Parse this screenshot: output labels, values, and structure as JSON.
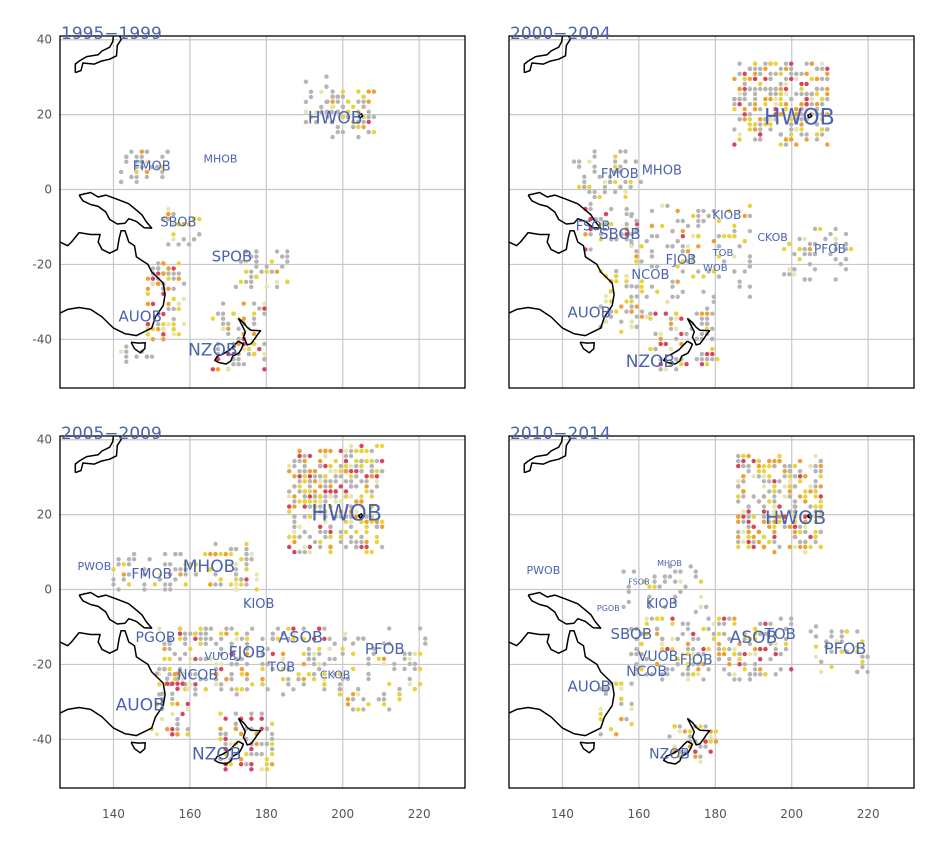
{
  "figure": {
    "x_ticks": [
      140,
      160,
      180,
      200,
      220
    ],
    "y_ticks": [
      40,
      20,
      0,
      -20,
      -40
    ],
    "lon_range": [
      126,
      232
    ],
    "lat_range": [
      -53,
      41
    ],
    "colors": {
      "grey": "#b5b5b5",
      "yellow": "#e8d43a",
      "orange": "#f0a030",
      "red": "#d9445a",
      "pale": "#e8e6b0"
    }
  },
  "panels": [
    {
      "title": "1995−1999",
      "labels": [
        {
          "text": "HWOB",
          "lon": 198,
          "lat": 19,
          "size": 17
        },
        {
          "text": "FMOB",
          "lon": 150,
          "lat": 6,
          "size": 13
        },
        {
          "text": "MHOB",
          "lon": 168,
          "lat": 8,
          "size": 11
        },
        {
          "text": "SBOB",
          "lon": 157,
          "lat": -9,
          "size": 13
        },
        {
          "text": "SPOB",
          "lon": 171,
          "lat": -18,
          "size": 15
        },
        {
          "text": "AUOB",
          "lon": 147,
          "lat": -34,
          "size": 15
        },
        {
          "text": "NZOB",
          "lon": 166,
          "lat": -43,
          "size": 17
        }
      ],
      "clusters": [
        {
          "lon": [
            196,
            208
          ],
          "lat": [
            14,
            26
          ],
          "n": 60,
          "mix": [
            0.6,
            0.25,
            0.1,
            0.05
          ]
        },
        {
          "lon": [
            189,
            197
          ],
          "lat": [
            18,
            30
          ],
          "n": 25,
          "mix": [
            0.85,
            0.1,
            0.05,
            0
          ]
        },
        {
          "lon": [
            142,
            154
          ],
          "lat": [
            2,
            10
          ],
          "n": 40,
          "mix": [
            0.7,
            0.25,
            0.05,
            0
          ]
        },
        {
          "lon": [
            153,
            163
          ],
          "lat": [
            -16,
            -5
          ],
          "n": 25,
          "mix": [
            0.5,
            0.35,
            0.1,
            0.05
          ]
        },
        {
          "lon": [
            149,
            158
          ],
          "lat": [
            -40,
            -20
          ],
          "n": 80,
          "mix": [
            0.3,
            0.3,
            0.2,
            0.2
          ]
        },
        {
          "lon": [
            166,
            180
          ],
          "lat": [
            -48,
            -30
          ],
          "n": 70,
          "mix": [
            0.45,
            0.3,
            0.1,
            0.15
          ]
        },
        {
          "lon": [
            172,
            186
          ],
          "lat": [
            -26,
            -16
          ],
          "n": 40,
          "mix": [
            0.55,
            0.35,
            0.1,
            0
          ]
        },
        {
          "lon": [
            142,
            150
          ],
          "lat": [
            -46,
            -42
          ],
          "n": 10,
          "mix": [
            0.8,
            0.2,
            0,
            0
          ]
        }
      ]
    },
    {
      "title": "2000−2004",
      "labels": [
        {
          "text": "HWOB",
          "lon": 202,
          "lat": 19,
          "size": 22
        },
        {
          "text": "FMOB",
          "lon": 155,
          "lat": 4,
          "size": 13
        },
        {
          "text": "MHOB",
          "lon": 166,
          "lat": 5,
          "size": 13
        },
        {
          "text": "FSOB",
          "lon": 148,
          "lat": -10,
          "size": 13
        },
        {
          "text": "SBOB",
          "lon": 155,
          "lat": -12,
          "size": 15
        },
        {
          "text": "KIOB",
          "lon": 183,
          "lat": -7,
          "size": 12
        },
        {
          "text": "CKOB",
          "lon": 195,
          "lat": -13,
          "size": 11
        },
        {
          "text": "PFOB",
          "lon": 210,
          "lat": -16,
          "size": 12
        },
        {
          "text": "NCOB",
          "lon": 163,
          "lat": -23,
          "size": 13
        },
        {
          "text": "FJOB",
          "lon": 171,
          "lat": -19,
          "size": 13
        },
        {
          "text": "TOB",
          "lon": 182,
          "lat": -17,
          "size": 10
        },
        {
          "text": "WOB",
          "lon": 180,
          "lat": -21,
          "size": 10
        },
        {
          "text": "AUOB",
          "lon": 147,
          "lat": -33,
          "size": 15
        },
        {
          "text": "NZOB",
          "lon": 163,
          "lat": -46,
          "size": 17
        }
      ],
      "clusters": [
        {
          "lon": [
            185,
            210
          ],
          "lat": [
            12,
            34
          ],
          "n": 260,
          "mix": [
            0.45,
            0.3,
            0.15,
            0.1
          ]
        },
        {
          "lon": [
            143,
            160
          ],
          "lat": [
            -2,
            10
          ],
          "n": 50,
          "mix": [
            0.7,
            0.25,
            0.05,
            0
          ]
        },
        {
          "lon": [
            146,
            160
          ],
          "lat": [
            -16,
            -4
          ],
          "n": 40,
          "mix": [
            0.55,
            0.3,
            0.05,
            0.1
          ]
        },
        {
          "lon": [
            158,
            190
          ],
          "lat": [
            -30,
            -4
          ],
          "n": 120,
          "mix": [
            0.6,
            0.3,
            0.08,
            0.02
          ]
        },
        {
          "lon": [
            150,
            162
          ],
          "lat": [
            -38,
            -22
          ],
          "n": 50,
          "mix": [
            0.4,
            0.35,
            0.15,
            0.1
          ]
        },
        {
          "lon": [
            163,
            180
          ],
          "lat": [
            -48,
            -32
          ],
          "n": 80,
          "mix": [
            0.45,
            0.3,
            0.1,
            0.15
          ]
        },
        {
          "lon": [
            198,
            215
          ],
          "lat": [
            -24,
            -10
          ],
          "n": 50,
          "mix": [
            0.75,
            0.2,
            0.05,
            0
          ]
        }
      ]
    },
    {
      "title": "2005−2009",
      "labels": [
        {
          "text": "HWOB",
          "lon": 201,
          "lat": 20,
          "size": 22
        },
        {
          "text": "PWOB",
          "lon": 135,
          "lat": 6,
          "size": 11
        },
        {
          "text": "FMOB",
          "lon": 150,
          "lat": 4,
          "size": 14
        },
        {
          "text": "MHOB",
          "lon": 165,
          "lat": 6,
          "size": 17
        },
        {
          "text": "KIOB",
          "lon": 178,
          "lat": -4,
          "size": 13
        },
        {
          "text": "PGOB",
          "lon": 151,
          "lat": -13,
          "size": 14
        },
        {
          "text": "ASOB",
          "lon": 189,
          "lat": -13,
          "size": 16
        },
        {
          "text": "PFOB",
          "lon": 211,
          "lat": -16,
          "size": 15
        },
        {
          "text": "VUOB",
          "lon": 168,
          "lat": -18,
          "size": 11
        },
        {
          "text": "FJOB",
          "lon": 175,
          "lat": -17,
          "size": 16
        },
        {
          "text": "TOB",
          "lon": 184,
          "lat": -21,
          "size": 13
        },
        {
          "text": "NCOB",
          "lon": 162,
          "lat": -23,
          "size": 14
        },
        {
          "text": "CKOB",
          "lon": 198,
          "lat": -23,
          "size": 11
        },
        {
          "text": "AUOB",
          "lon": 147,
          "lat": -31,
          "size": 17
        },
        {
          "text": "NZOB",
          "lon": 167,
          "lat": -44,
          "size": 17
        }
      ],
      "clusters": [
        {
          "lon": [
            186,
            210
          ],
          "lat": [
            10,
            38
          ],
          "n": 300,
          "mix": [
            0.4,
            0.3,
            0.15,
            0.15
          ]
        },
        {
          "lon": [
            140,
            162
          ],
          "lat": [
            0,
            10
          ],
          "n": 50,
          "mix": [
            0.8,
            0.15,
            0.05,
            0
          ]
        },
        {
          "lon": [
            164,
            180
          ],
          "lat": [
            0,
            12
          ],
          "n": 50,
          "mix": [
            0.5,
            0.4,
            0.08,
            0.02
          ]
        },
        {
          "lon": [
            152,
            200
          ],
          "lat": [
            -28,
            -10
          ],
          "n": 220,
          "mix": [
            0.55,
            0.3,
            0.08,
            0.07
          ]
        },
        {
          "lon": [
            150,
            160
          ],
          "lat": [
            -40,
            -22
          ],
          "n": 50,
          "mix": [
            0.35,
            0.35,
            0.15,
            0.15
          ]
        },
        {
          "lon": [
            168,
            182
          ],
          "lat": [
            -48,
            -32
          ],
          "n": 70,
          "mix": [
            0.4,
            0.3,
            0.1,
            0.2
          ]
        },
        {
          "lon": [
            200,
            222
          ],
          "lat": [
            -32,
            -10
          ],
          "n": 70,
          "mix": [
            0.65,
            0.3,
            0.05,
            0
          ]
        }
      ]
    },
    {
      "title": "2010−2014",
      "labels": [
        {
          "text": "HWOB",
          "lon": 201,
          "lat": 19,
          "size": 19
        },
        {
          "text": "PWOB",
          "lon": 135,
          "lat": 5,
          "size": 11
        },
        {
          "text": "FSOB",
          "lon": 160,
          "lat": 2,
          "size": 8
        },
        {
          "text": "MHOB",
          "lon": 168,
          "lat": 7,
          "size": 8
        },
        {
          "text": "KIOB",
          "lon": 166,
          "lat": -4,
          "size": 13
        },
        {
          "text": "PGOB",
          "lon": 152,
          "lat": -5,
          "size": 8
        },
        {
          "text": "SBOB",
          "lon": 158,
          "lat": -12,
          "size": 15
        },
        {
          "text": "ASOB",
          "lon": 190,
          "lat": -13,
          "size": 17
        },
        {
          "text": "TOB",
          "lon": 197,
          "lat": -12,
          "size": 15
        },
        {
          "text": "PFOB",
          "lon": 214,
          "lat": -16,
          "size": 16
        },
        {
          "text": "VUOB",
          "lon": 165,
          "lat": -18,
          "size": 14
        },
        {
          "text": "FJOB",
          "lon": 175,
          "lat": -19,
          "size": 14
        },
        {
          "text": "NCOB",
          "lon": 162,
          "lat": -22,
          "size": 14
        },
        {
          "text": "AUOB",
          "lon": 147,
          "lat": -26,
          "size": 15
        },
        {
          "text": "NZOB",
          "lon": 168,
          "lat": -44,
          "size": 14
        }
      ],
      "clusters": [
        {
          "lon": [
            186,
            208
          ],
          "lat": [
            10,
            36
          ],
          "n": 250,
          "mix": [
            0.4,
            0.35,
            0.15,
            0.1
          ]
        },
        {
          "lon": [
            156,
            178
          ],
          "lat": [
            -6,
            6
          ],
          "n": 40,
          "mix": [
            0.85,
            0.15,
            0,
            0
          ]
        },
        {
          "lon": [
            158,
            200
          ],
          "lat": [
            -24,
            -8
          ],
          "n": 180,
          "mix": [
            0.55,
            0.3,
            0.08,
            0.07
          ]
        },
        {
          "lon": [
            205,
            220
          ],
          "lat": [
            -22,
            -10
          ],
          "n": 40,
          "mix": [
            0.7,
            0.3,
            0,
            0
          ]
        },
        {
          "lon": [
            150,
            158
          ],
          "lat": [
            -40,
            -24
          ],
          "n": 25,
          "mix": [
            0.45,
            0.45,
            0.1,
            0
          ]
        },
        {
          "lon": [
            168,
            180
          ],
          "lat": [
            -46,
            -36
          ],
          "n": 35,
          "mix": [
            0.45,
            0.3,
            0.15,
            0.1
          ]
        }
      ]
    }
  ]
}
